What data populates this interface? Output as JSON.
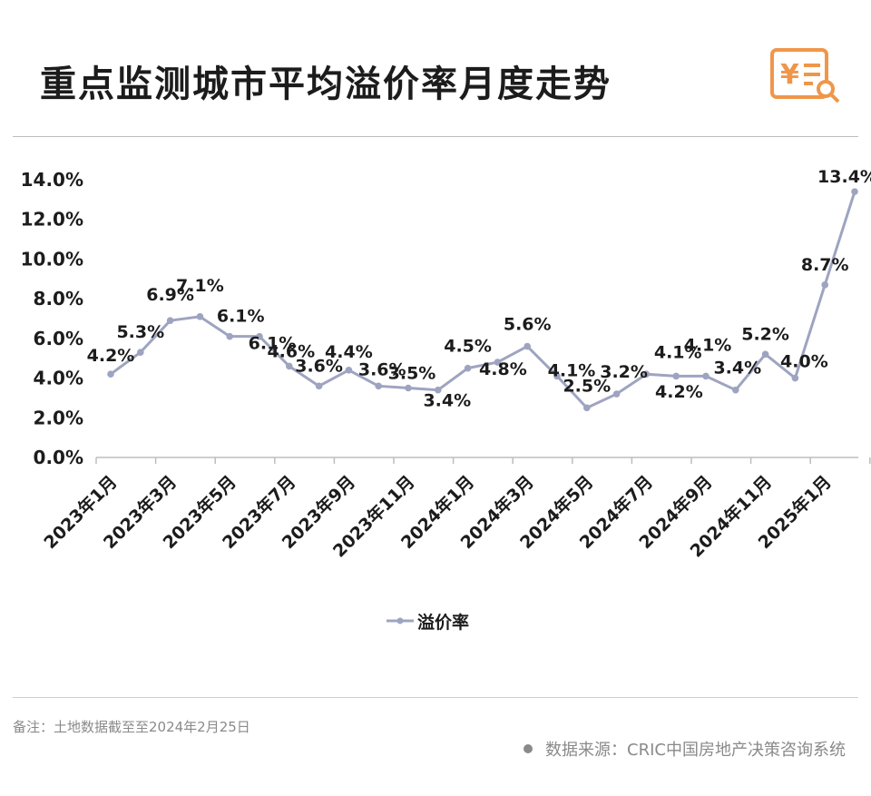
{
  "title": "重点监测城市平均溢价率月度走势",
  "logo_icon": "receipt-search-icon",
  "note": "备注：土地数据截至至2024年2月25日",
  "source": "数据来源：CRIC中国房地产决策咨询系统",
  "colors": {
    "line": "#9ea4c0",
    "text": "#1c1c1c",
    "logo": "#f0964a",
    "muted": "#8a8a8a"
  },
  "chart_data": {
    "type": "line",
    "title": "重点监测城市平均溢价率月度走势",
    "xlabel": "",
    "ylabel": "",
    "ylim": [
      0,
      14
    ],
    "y_ticks": [
      "0.0%",
      "2.0%",
      "4.0%",
      "6.0%",
      "8.0%",
      "10.0%",
      "12.0%",
      "14.0%"
    ],
    "x": [
      "2023年1月",
      "2023年2月",
      "2023年3月",
      "2023年4月",
      "2023年5月",
      "2023年6月",
      "2023年7月",
      "2023年8月",
      "2023年9月",
      "2023年10月",
      "2023年11月",
      "2023年12月",
      "2024年1月",
      "2024年2月",
      "2024年3月",
      "2024年4月",
      "2024年5月",
      "2024年6月",
      "2024年7月",
      "2024年8月",
      "2024年9月",
      "2024年10月",
      "2024年11月",
      "2024年12月",
      "2025年1月",
      "2025年2月"
    ],
    "x_tick_labels": [
      "2023年1月",
      "2023年3月",
      "2023年5月",
      "2023年7月",
      "2023年9月",
      "2023年11月",
      "2024年1月",
      "2024年3月",
      "2024年5月",
      "2024年7月",
      "2024年9月",
      "2024年11月",
      "2025年1月"
    ],
    "series": [
      {
        "name": "溢价率",
        "values": [
          4.2,
          5.3,
          6.9,
          7.1,
          6.1,
          6.1,
          4.6,
          3.6,
          4.4,
          3.6,
          3.5,
          3.4,
          4.5,
          4.8,
          5.6,
          4.1,
          2.5,
          3.2,
          4.2,
          4.1,
          4.1,
          3.4,
          5.2,
          4.0,
          8.7,
          13.4
        ],
        "labels": [
          "4.2%",
          "5.3%",
          "6.9%",
          "7.1%",
          "6.1%",
          "6.1%",
          "4.6%",
          "3.6%",
          "4.4%",
          "3.6%",
          "3.5%",
          "3.4%",
          "4.5%",
          "4.8%",
          "5.6%",
          "4.1%",
          "2.5%",
          "3.2%",
          "4.2%",
          "4.1%",
          "4.1%",
          "3.4%",
          "5.2%",
          "4.0%",
          "8.7%",
          "13.4%"
        ]
      }
    ],
    "legend": "bottom-center",
    "grid": false
  }
}
